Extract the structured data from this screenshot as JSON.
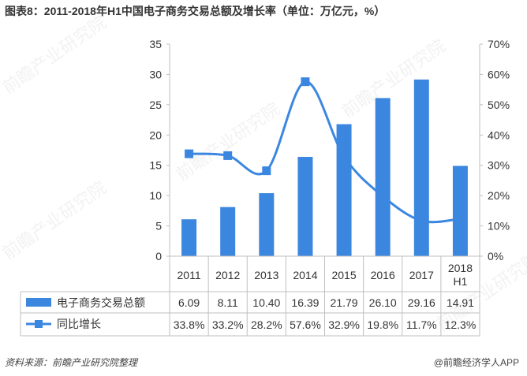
{
  "title": "图表8：2011-2018年H1中国电子商务交易总额及增长率（单位：万亿元，%）",
  "watermark": "前瞻产业研究院",
  "source_label": "资料来源：前瞻产业研究院整理",
  "brand_label": "@前瞻经济学人APP",
  "colors": {
    "bar": "#3b87e0",
    "line": "#3b87e0",
    "grid": "#bfbfbf",
    "text": "#333333"
  },
  "chart_data": {
    "type": "bar+line",
    "categories": [
      "2011",
      "2012",
      "2013",
      "2014",
      "2015",
      "2016",
      "2017",
      "2018\nH1"
    ],
    "series": [
      {
        "name": "电子商务交易总额",
        "type": "bar",
        "axis": "left",
        "values": [
          6.09,
          8.11,
          10.4,
          16.39,
          21.79,
          26.1,
          29.16,
          14.91
        ],
        "labels": [
          "6.09",
          "8.11",
          "10.40",
          "16.39",
          "21.79",
          "26.10",
          "29.16",
          "14.91"
        ]
      },
      {
        "name": "同比增长",
        "type": "line",
        "axis": "right",
        "values": [
          33.8,
          33.2,
          28.2,
          57.6,
          32.9,
          19.8,
          11.7,
          12.3
        ],
        "labels": [
          "33.8%",
          "33.2%",
          "28.2%",
          "57.6%",
          "32.9%",
          "19.8%",
          "11.7%",
          "12.3%"
        ]
      }
    ],
    "y_left": {
      "min": 0,
      "max": 35,
      "ticks": [
        "0",
        "5",
        "10",
        "15",
        "20",
        "25",
        "30",
        "35"
      ]
    },
    "y_right": {
      "min": 0,
      "max": 70,
      "ticks": [
        "0%",
        "10%",
        "20%",
        "30%",
        "40%",
        "50%",
        "60%",
        "70%"
      ]
    },
    "data_table": true
  }
}
